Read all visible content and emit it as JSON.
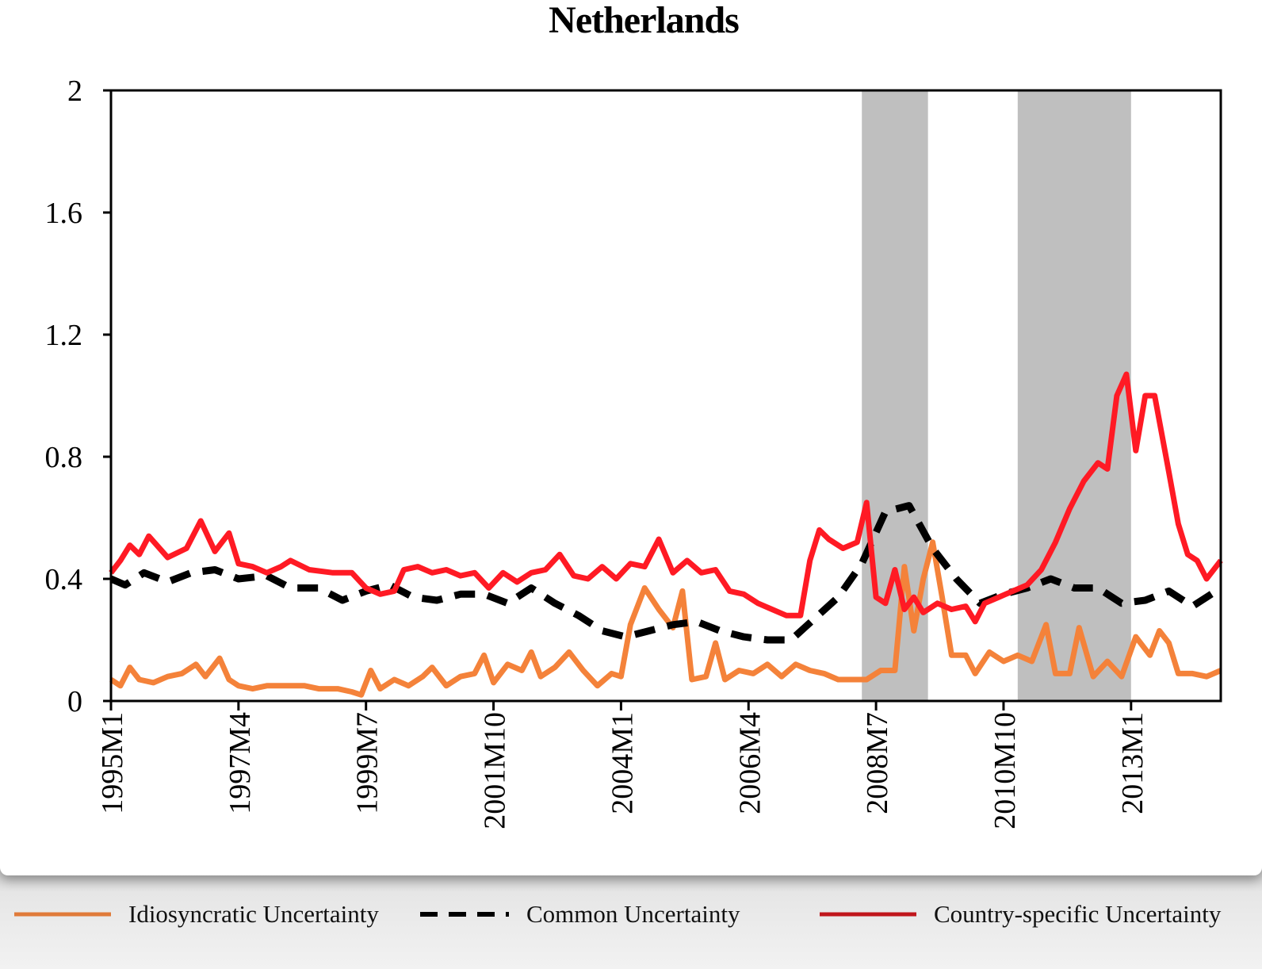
{
  "chart_data": {
    "type": "line",
    "title": "Netherlands",
    "xlabel": "",
    "ylabel": "",
    "ylim": [
      0,
      2
    ],
    "yticks": [
      "0",
      "0.4",
      "0.8",
      "1.2",
      "1.6",
      "2"
    ],
    "xticks": [
      "1995M1",
      "1997M4",
      "1999M7",
      "2001M10",
      "2004M1",
      "2006M4",
      "2008M7",
      "2010M10",
      "2013M1"
    ],
    "x_start": "1995M1",
    "x_end": "2014M8",
    "shaded_periods": [
      {
        "start": "2008M4",
        "end": "2009M6"
      },
      {
        "start": "2011M1",
        "end": "2013M1"
      }
    ],
    "series": [
      {
        "name": "Idiosyncratic Uncertainty",
        "color": "#f4823a",
        "style": "solid",
        "points": [
          [
            "1995M1",
            0.07
          ],
          [
            "1995M3",
            0.05
          ],
          [
            "1995M5",
            0.11
          ],
          [
            "1995M7",
            0.07
          ],
          [
            "1995M10",
            0.06
          ],
          [
            "1996M1",
            0.08
          ],
          [
            "1996M4",
            0.09
          ],
          [
            "1996M7",
            0.12
          ],
          [
            "1996M9",
            0.08
          ],
          [
            "1996M12",
            0.14
          ],
          [
            "1997M2",
            0.07
          ],
          [
            "1997M4",
            0.05
          ],
          [
            "1997M7",
            0.04
          ],
          [
            "1997M10",
            0.05
          ],
          [
            "1998M1",
            0.05
          ],
          [
            "1998M6",
            0.05
          ],
          [
            "1998M9",
            0.04
          ],
          [
            "1999M1",
            0.04
          ],
          [
            "1999M4",
            0.03
          ],
          [
            "1999M6",
            0.02
          ],
          [
            "1999M8",
            0.1
          ],
          [
            "1999M10",
            0.04
          ],
          [
            "2000M1",
            0.07
          ],
          [
            "2000M4",
            0.05
          ],
          [
            "2000M7",
            0.08
          ],
          [
            "2000M9",
            0.11
          ],
          [
            "2000M12",
            0.05
          ],
          [
            "2001M3",
            0.08
          ],
          [
            "2001M6",
            0.09
          ],
          [
            "2001M8",
            0.15
          ],
          [
            "2001M10",
            0.06
          ],
          [
            "2002M1",
            0.12
          ],
          [
            "2002M4",
            0.1
          ],
          [
            "2002M6",
            0.16
          ],
          [
            "2002M8",
            0.08
          ],
          [
            "2002M11",
            0.11
          ],
          [
            "2003M2",
            0.16
          ],
          [
            "2003M5",
            0.1
          ],
          [
            "2003M8",
            0.05
          ],
          [
            "2003M11",
            0.09
          ],
          [
            "2004M1",
            0.08
          ],
          [
            "2004M3",
            0.25
          ],
          [
            "2004M6",
            0.37
          ],
          [
            "2004M9",
            0.3
          ],
          [
            "2004M12",
            0.24
          ],
          [
            "2005M2",
            0.36
          ],
          [
            "2005M4",
            0.07
          ],
          [
            "2005M7",
            0.08
          ],
          [
            "2005M9",
            0.19
          ],
          [
            "2005M11",
            0.07
          ],
          [
            "2006M2",
            0.1
          ],
          [
            "2006M5",
            0.09
          ],
          [
            "2006M8",
            0.12
          ],
          [
            "2006M11",
            0.08
          ],
          [
            "2007M2",
            0.12
          ],
          [
            "2007M5",
            0.1
          ],
          [
            "2007M8",
            0.09
          ],
          [
            "2007M11",
            0.07
          ],
          [
            "2008M2",
            0.07
          ],
          [
            "2008M5",
            0.07
          ],
          [
            "2008M8",
            0.1
          ],
          [
            "2008M11",
            0.1
          ],
          [
            "2009M1",
            0.44
          ],
          [
            "2009M3",
            0.23
          ],
          [
            "2009M5",
            0.4
          ],
          [
            "2009M7",
            0.52
          ],
          [
            "2009M9",
            0.34
          ],
          [
            "2009M11",
            0.15
          ],
          [
            "2010M2",
            0.15
          ],
          [
            "2010M4",
            0.09
          ],
          [
            "2010M7",
            0.16
          ],
          [
            "2010M10",
            0.13
          ],
          [
            "2011M1",
            0.15
          ],
          [
            "2011M4",
            0.13
          ],
          [
            "2011M7",
            0.25
          ],
          [
            "2011M9",
            0.09
          ],
          [
            "2011M12",
            0.09
          ],
          [
            "2012M2",
            0.24
          ],
          [
            "2012M5",
            0.08
          ],
          [
            "2012M8",
            0.13
          ],
          [
            "2012M11",
            0.08
          ],
          [
            "2013M2",
            0.21
          ],
          [
            "2013M5",
            0.15
          ],
          [
            "2013M7",
            0.23
          ],
          [
            "2013M9",
            0.19
          ],
          [
            "2013M11",
            0.09
          ],
          [
            "2014M2",
            0.09
          ],
          [
            "2014M5",
            0.08
          ],
          [
            "2014M8",
            0.1
          ]
        ]
      },
      {
        "name": "Common Uncertainty",
        "color": "#000000",
        "style": "dashed",
        "points": [
          [
            "1995M1",
            0.4
          ],
          [
            "1995M4",
            0.38
          ],
          [
            "1995M8",
            0.42
          ],
          [
            "1996M1",
            0.39
          ],
          [
            "1996M6",
            0.42
          ],
          [
            "1996M11",
            0.43
          ],
          [
            "1997M4",
            0.4
          ],
          [
            "1997M10",
            0.41
          ],
          [
            "1998M3",
            0.37
          ],
          [
            "1998M9",
            0.37
          ],
          [
            "1999M2",
            0.33
          ],
          [
            "1999M7",
            0.36
          ],
          [
            "1999M12",
            0.38
          ],
          [
            "2000M5",
            0.34
          ],
          [
            "2000M10",
            0.33
          ],
          [
            "2001M3",
            0.35
          ],
          [
            "2001M8",
            0.35
          ],
          [
            "2002M1",
            0.32
          ],
          [
            "2002M6",
            0.37
          ],
          [
            "2002M11",
            0.32
          ],
          [
            "2003M4",
            0.28
          ],
          [
            "2003M9",
            0.23
          ],
          [
            "2004M2",
            0.21
          ],
          [
            "2004M7",
            0.23
          ],
          [
            "2004M12",
            0.25
          ],
          [
            "2005M5",
            0.26
          ],
          [
            "2005M10",
            0.23
          ],
          [
            "2006M3",
            0.21
          ],
          [
            "2006M8",
            0.2
          ],
          [
            "2007M1",
            0.2
          ],
          [
            "2007M6",
            0.27
          ],
          [
            "2007M11",
            0.34
          ],
          [
            "2008M4",
            0.45
          ],
          [
            "2008M9",
            0.62
          ],
          [
            "2009M2",
            0.64
          ],
          [
            "2009M7",
            0.5
          ],
          [
            "2009M12",
            0.4
          ],
          [
            "2010M5",
            0.32
          ],
          [
            "2010M10",
            0.35
          ],
          [
            "2011M3",
            0.37
          ],
          [
            "2011M8",
            0.4
          ],
          [
            "2012M1",
            0.37
          ],
          [
            "2012M6",
            0.37
          ],
          [
            "2012M11",
            0.32
          ],
          [
            "2013M4",
            0.33
          ],
          [
            "2013M9",
            0.36
          ],
          [
            "2014M2",
            0.31
          ],
          [
            "2014M8",
            0.37
          ]
        ]
      },
      {
        "name": "Country-specific Uncertainty",
        "color": "#ff1a24",
        "style": "solid",
        "points": [
          [
            "1995M1",
            0.42
          ],
          [
            "1995M3",
            0.46
          ],
          [
            "1995M5",
            0.51
          ],
          [
            "1995M7",
            0.48
          ],
          [
            "1995M9",
            0.54
          ],
          [
            "1996M1",
            0.47
          ],
          [
            "1996M5",
            0.5
          ],
          [
            "1996M8",
            0.59
          ],
          [
            "1996M11",
            0.49
          ],
          [
            "1997M2",
            0.55
          ],
          [
            "1997M4",
            0.45
          ],
          [
            "1997M7",
            0.44
          ],
          [
            "1997M10",
            0.42
          ],
          [
            "1998M1",
            0.44
          ],
          [
            "1998M3",
            0.46
          ],
          [
            "1998M7",
            0.43
          ],
          [
            "1998M12",
            0.42
          ],
          [
            "1999M4",
            0.42
          ],
          [
            "1999M7",
            0.37
          ],
          [
            "1999M10",
            0.35
          ],
          [
            "2000M1",
            0.36
          ],
          [
            "2000M3",
            0.43
          ],
          [
            "2000M6",
            0.44
          ],
          [
            "2000M9",
            0.42
          ],
          [
            "2000M12",
            0.43
          ],
          [
            "2001M3",
            0.41
          ],
          [
            "2001M6",
            0.42
          ],
          [
            "2001M9",
            0.37
          ],
          [
            "2001M12",
            0.42
          ],
          [
            "2002M3",
            0.39
          ],
          [
            "2002M6",
            0.42
          ],
          [
            "2002M9",
            0.43
          ],
          [
            "2002M12",
            0.48
          ],
          [
            "2003M3",
            0.41
          ],
          [
            "2003M6",
            0.4
          ],
          [
            "2003M9",
            0.44
          ],
          [
            "2003M12",
            0.4
          ],
          [
            "2004M3",
            0.45
          ],
          [
            "2004M6",
            0.44
          ],
          [
            "2004M9",
            0.53
          ],
          [
            "2004M12",
            0.42
          ],
          [
            "2005M3",
            0.46
          ],
          [
            "2005M6",
            0.42
          ],
          [
            "2005M9",
            0.43
          ],
          [
            "2005M12",
            0.36
          ],
          [
            "2006M3",
            0.35
          ],
          [
            "2006M6",
            0.32
          ],
          [
            "2006M9",
            0.3
          ],
          [
            "2006M12",
            0.28
          ],
          [
            "2007M3",
            0.28
          ],
          [
            "2007M5",
            0.46
          ],
          [
            "2007M7",
            0.56
          ],
          [
            "2007M9",
            0.53
          ],
          [
            "2007M12",
            0.5
          ],
          [
            "2008M3",
            0.52
          ],
          [
            "2008M5",
            0.65
          ],
          [
            "2008M7",
            0.34
          ],
          [
            "2008M9",
            0.32
          ],
          [
            "2008M11",
            0.43
          ],
          [
            "2009M1",
            0.3
          ],
          [
            "2009M3",
            0.34
          ],
          [
            "2009M5",
            0.29
          ],
          [
            "2009M8",
            0.32
          ],
          [
            "2009M11",
            0.3
          ],
          [
            "2010M2",
            0.31
          ],
          [
            "2010M4",
            0.26
          ],
          [
            "2010M6",
            0.32
          ],
          [
            "2010M9",
            0.34
          ],
          [
            "2010M12",
            0.36
          ],
          [
            "2011M3",
            0.38
          ],
          [
            "2011M6",
            0.43
          ],
          [
            "2011M9",
            0.52
          ],
          [
            "2011M12",
            0.63
          ],
          [
            "2012M3",
            0.72
          ],
          [
            "2012M6",
            0.78
          ],
          [
            "2012M8",
            0.76
          ],
          [
            "2012M10",
            1.0
          ],
          [
            "2012M12",
            1.07
          ],
          [
            "2013M2",
            0.82
          ],
          [
            "2013M4",
            1.0
          ],
          [
            "2013M6",
            1.0
          ],
          [
            "2013M9",
            0.75
          ],
          [
            "2013M11",
            0.58
          ],
          [
            "2014M1",
            0.48
          ],
          [
            "2014M3",
            0.46
          ],
          [
            "2014M5",
            0.4
          ],
          [
            "2014M8",
            0.46
          ]
        ]
      }
    ],
    "legend": {
      "position": "bottom",
      "items": [
        {
          "label": "Idiosyncratic Uncertainty",
          "color": "#e07b39",
          "style": "solid"
        },
        {
          "label": "Common Uncertainty",
          "color": "#000000",
          "style": "dashed"
        },
        {
          "label": "Country-specific Uncertainty",
          "color": "#c0161c",
          "style": "solid"
        }
      ]
    },
    "grid": false
  }
}
